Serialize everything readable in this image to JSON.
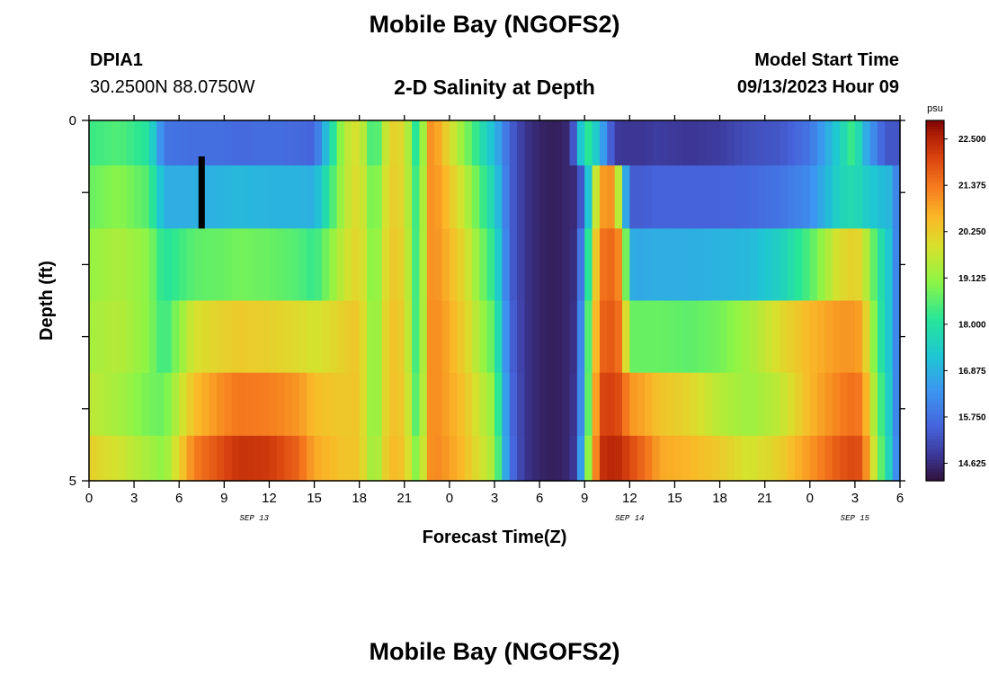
{
  "title": "Mobile Bay (NGOFS2)",
  "title_repeat": "Mobile Bay (NGOFS2)",
  "station": {
    "id": "DPIA1",
    "coords": "30.2500N  88.0750W"
  },
  "subtitle": "2-D Salinity at Depth",
  "model_start": {
    "label": "Model Start Time",
    "value": "09/13/2023 Hour 09"
  },
  "chart_data": {
    "type": "heatmap",
    "title": "2-D Salinity at Depth",
    "xlabel": "Forecast Time(Z)",
    "ylabel": "Depth (ft)",
    "x_ticks": [
      "0",
      "3",
      "6",
      "9",
      "12",
      "15",
      "18",
      "21",
      "0",
      "3",
      "6",
      "9",
      "12",
      "15",
      "18",
      "21",
      "0",
      "3",
      "6"
    ],
    "x_range_hours": [
      0,
      54
    ],
    "date_labels": [
      {
        "text": "SEP 13",
        "hour": 11
      },
      {
        "text": "SEP 14",
        "hour": 36
      },
      {
        "text": "SEP 15",
        "hour": 51
      }
    ],
    "y_ticks": [
      "0",
      "5"
    ],
    "y_range_ft": [
      0,
      5
    ],
    "depth_levels_ft": [
      0.25,
      1.0,
      2.0,
      3.0,
      4.0,
      4.75
    ],
    "colorbar": {
      "units": "psu",
      "min": 14.2,
      "max": 22.95,
      "ticks": [
        "22.500",
        "21.375",
        "20.250",
        "19.125",
        "18.000",
        "16.875",
        "15.750",
        "14.625"
      ]
    },
    "no_data_bar": {
      "hour": 7.5,
      "depth_from_ft": 0.5,
      "depth_to_ft": 1.5
    },
    "series": [
      {
        "name": "0.25 ft",
        "hours": [
          0,
          2,
          4,
          5,
          7,
          9,
          10,
          12,
          14,
          15,
          17,
          18,
          19,
          20,
          21,
          22,
          22.5,
          23,
          23.5,
          25,
          27,
          28,
          29,
          30,
          31,
          32,
          32.5,
          33,
          34,
          35,
          35.5,
          36,
          37,
          37.5,
          38,
          40,
          42,
          44,
          46,
          48,
          50,
          51,
          51.5,
          52,
          53,
          53.5,
          54
        ],
        "values": [
          18.3,
          18.5,
          18.0,
          15.8,
          15.7,
          15.7,
          15.6,
          15.7,
          15.6,
          15.5,
          19.5,
          20.0,
          18.0,
          20.2,
          20.0,
          17.5,
          21.0,
          21.1,
          20.5,
          19.0,
          17.0,
          15.5,
          14.8,
          14.5,
          14.4,
          14.6,
          16.0,
          18.5,
          17.0,
          14.9,
          14.8,
          14.8,
          14.8,
          14.9,
          14.9,
          14.8,
          14.9,
          15.2,
          15.3,
          15.8,
          17.5,
          18.5,
          17.0,
          16.5,
          15.3,
          15.3,
          15.3
        ]
      },
      {
        "name": "1.0 ft",
        "hours": [
          0,
          2,
          4,
          5,
          7,
          9,
          10,
          12,
          14,
          15,
          17,
          18,
          19,
          20,
          21,
          22,
          22.5,
          23,
          23.5,
          25,
          27,
          28,
          29,
          30,
          31,
          32,
          32.5,
          33,
          34,
          35,
          35.5,
          36,
          37,
          37.5,
          38,
          40,
          42,
          44,
          46,
          48,
          50,
          51,
          51.5,
          52,
          53,
          53.5,
          54
        ],
        "values": [
          18.7,
          19.0,
          18.5,
          16.8,
          16.8,
          16.9,
          17.0,
          16.9,
          16.9,
          16.8,
          19.5,
          20.1,
          18.5,
          20.3,
          20.0,
          17.8,
          21.0,
          21.1,
          20.8,
          19.6,
          17.5,
          15.5,
          14.8,
          14.5,
          14.4,
          14.6,
          14.6,
          16.0,
          20.9,
          21.1,
          18.0,
          15.4,
          15.4,
          15.5,
          15.5,
          15.5,
          15.5,
          15.6,
          15.8,
          16.2,
          17.6,
          17.8,
          17.5,
          17.3,
          17.0,
          16.9,
          15.3
        ]
      },
      {
        "name": "2.0 ft",
        "hours": [
          0,
          2,
          4,
          5,
          7,
          9,
          10,
          12,
          14,
          15,
          17,
          18,
          19,
          20,
          21,
          22,
          22.5,
          23,
          23.5,
          25,
          27,
          28,
          29,
          30,
          31,
          32,
          32.5,
          33,
          34,
          35,
          35.5,
          36,
          37,
          37.5,
          38,
          40,
          42,
          44,
          46,
          48,
          50,
          51,
          51.5,
          52,
          53,
          53.5,
          54
        ],
        "values": [
          19.1,
          19.4,
          19.0,
          18.0,
          18.6,
          18.7,
          18.8,
          18.7,
          18.5,
          18.2,
          19.7,
          20.2,
          18.7,
          20.4,
          20.1,
          17.8,
          21.0,
          21.1,
          20.9,
          20.0,
          18.0,
          15.5,
          14.8,
          14.5,
          14.4,
          14.6,
          14.7,
          17.0,
          21.4,
          21.6,
          20.8,
          16.8,
          16.7,
          16.8,
          16.8,
          16.8,
          16.9,
          17.0,
          17.5,
          18.5,
          20.0,
          20.2,
          20.0,
          19.0,
          17.5,
          17.0,
          15.3
        ]
      },
      {
        "name": "3.0 ft",
        "hours": [
          0,
          2,
          4,
          5,
          7,
          9,
          10,
          12,
          14,
          15,
          17,
          18,
          19,
          20,
          21,
          22,
          22.5,
          23,
          23.5,
          25,
          27,
          28,
          29,
          30,
          31,
          32,
          32.5,
          33,
          34,
          35,
          35.5,
          36,
          37,
          37.5,
          38,
          40,
          42,
          44,
          46,
          48,
          50,
          51,
          51.5,
          52,
          53,
          53.5,
          54
        ],
        "values": [
          19.3,
          19.5,
          19.0,
          18.2,
          19.9,
          20.2,
          20.3,
          20.2,
          20.0,
          19.8,
          20.2,
          20.4,
          18.8,
          20.5,
          20.2,
          17.8,
          21.0,
          21.2,
          21.0,
          20.2,
          18.5,
          15.6,
          14.8,
          14.5,
          14.4,
          14.6,
          14.8,
          17.5,
          21.6,
          21.8,
          21.2,
          18.7,
          18.7,
          18.7,
          18.7,
          18.6,
          18.8,
          19.3,
          20.0,
          20.6,
          21.0,
          21.0,
          20.8,
          19.5,
          17.5,
          17.0,
          15.3
        ]
      },
      {
        "name": "4.0 ft",
        "hours": [
          0,
          2,
          4,
          5,
          7,
          9,
          10,
          12,
          14,
          15,
          17,
          18,
          19,
          20,
          21,
          22,
          22.5,
          23,
          23.5,
          25,
          27,
          28,
          29,
          30,
          31,
          32,
          32.5,
          33,
          34,
          35,
          35.5,
          36,
          37,
          37.5,
          38,
          40,
          42,
          44,
          46,
          48,
          50,
          51,
          51.5,
          52,
          53,
          53.5,
          54
        ],
        "values": [
          19.6,
          19.3,
          18.8,
          18.7,
          20.5,
          21.2,
          21.4,
          21.3,
          21.0,
          20.5,
          20.3,
          20.4,
          18.8,
          20.5,
          20.3,
          18.0,
          21.0,
          21.2,
          21.0,
          20.4,
          19.0,
          15.7,
          14.8,
          14.5,
          14.4,
          14.6,
          14.9,
          17.5,
          22.0,
          22.1,
          21.8,
          21.0,
          20.8,
          20.6,
          20.4,
          20.1,
          19.5,
          19.2,
          19.6,
          20.6,
          21.3,
          21.5,
          21.3,
          20.0,
          17.8,
          17.0,
          15.3
        ]
      },
      {
        "name": "4.75 ft",
        "hours": [
          0,
          2,
          4,
          5,
          7,
          9,
          10,
          12,
          14,
          15,
          17,
          18,
          19,
          20,
          21,
          22,
          22.5,
          23,
          23.5,
          25,
          27,
          28,
          29,
          30,
          31,
          32,
          32.5,
          33,
          34,
          35,
          35.5,
          36,
          37,
          37.5,
          38,
          40,
          42,
          44,
          46,
          48,
          50,
          51,
          51.5,
          52,
          53,
          53.5,
          54
        ],
        "values": [
          20.2,
          19.8,
          19.3,
          19.0,
          21.3,
          22.0,
          22.3,
          22.2,
          21.6,
          20.8,
          20.4,
          20.4,
          19.0,
          20.6,
          20.4,
          18.5,
          21.0,
          21.2,
          21.1,
          20.5,
          19.3,
          15.8,
          14.8,
          14.5,
          14.4,
          14.6,
          15.0,
          18.0,
          22.3,
          22.5,
          22.3,
          22.0,
          21.5,
          21.2,
          20.8,
          20.6,
          20.3,
          19.8,
          20.2,
          21.0,
          21.8,
          22.0,
          21.8,
          20.4,
          18.0,
          17.2,
          15.3
        ]
      }
    ]
  }
}
